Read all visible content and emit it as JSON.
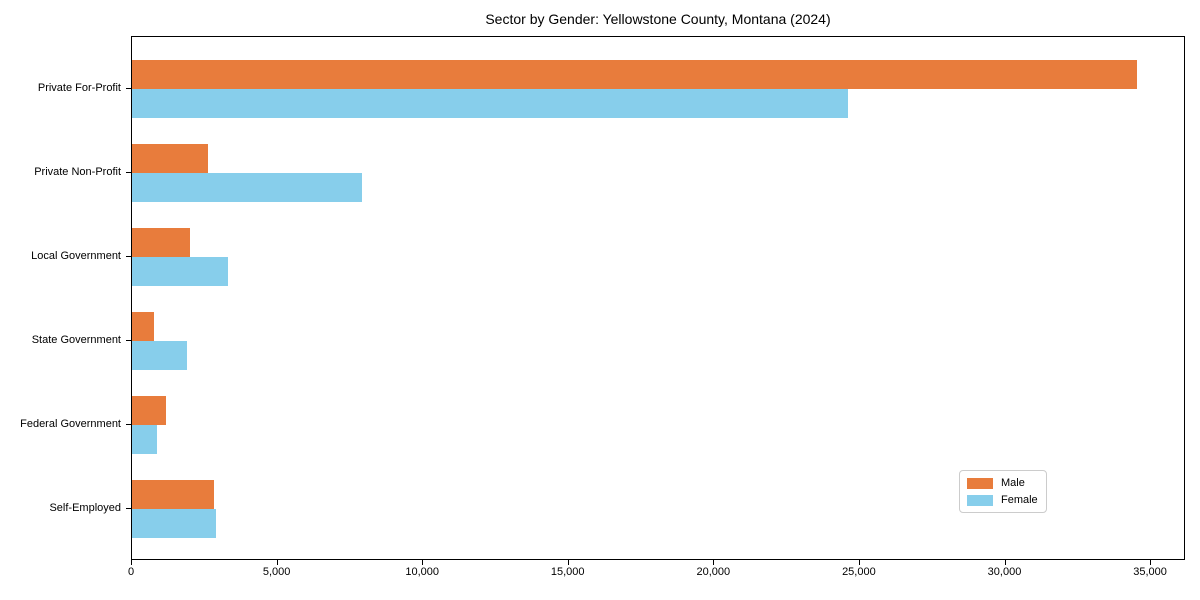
{
  "figure": {
    "background": "#ffffff",
    "frame_color": "#000000"
  },
  "chart_data": {
    "type": "bar",
    "orientation": "horizontal",
    "title": "Sector by Gender: Yellowstone County, Montana (2024)",
    "categories": [
      "Private For-Profit",
      "Private Non-Profit",
      "Local Government",
      "State Government",
      "Federal Government",
      "Self-Employed"
    ],
    "series": [
      {
        "name": "Male",
        "color": "#e87c3c",
        "values": [
          34500,
          2600,
          2000,
          750,
          1150,
          2800
        ]
      },
      {
        "name": "Female",
        "color": "#87ceeb",
        "values": [
          24600,
          7900,
          3300,
          1900,
          850,
          2900
        ]
      }
    ],
    "xlabel": "",
    "ylabel": "",
    "xlim": [
      0,
      36200
    ],
    "x_ticks": [
      0,
      5000,
      10000,
      15000,
      20000,
      25000,
      30000,
      35000
    ],
    "x_tick_labels": [
      "0",
      "5,000",
      "10,000",
      "15,000",
      "20,000",
      "25,000",
      "30,000",
      "35,000"
    ],
    "grid": false,
    "legend": {
      "position": "lower right",
      "entries": [
        "Male",
        "Female"
      ]
    }
  }
}
